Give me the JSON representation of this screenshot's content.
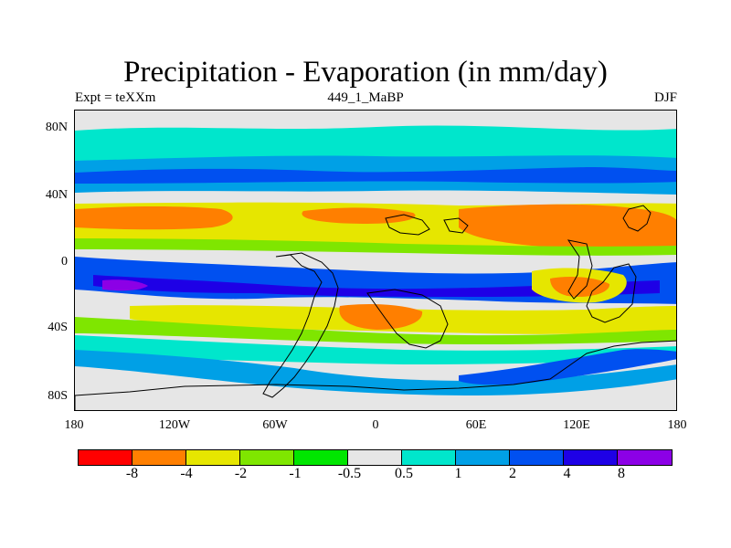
{
  "chart_data": {
    "type": "heatmap",
    "title": "Precipitation - Evaporation (in mm/day)",
    "subtitle_left": "Expt = teXXm",
    "subtitle_center": "449_1_MaBP",
    "subtitle_right": "DJF",
    "y_ticks": [
      "80N",
      "40N",
      "0",
      "40S",
      "80S"
    ],
    "x_ticks": [
      "180",
      "120W",
      "60W",
      "0",
      "60E",
      "120E",
      "180"
    ],
    "colorbar": {
      "colors": [
        "#ff0000",
        "#ff7f00",
        "#e6e600",
        "#7fe600",
        "#00e600",
        "#e6e6e6",
        "#00e6cc",
        "#00a0e6",
        "#0050f0",
        "#1e00e6",
        "#8c00e6"
      ],
      "labels": [
        "-8",
        "-4",
        "-2",
        "-1",
        "-0.5",
        "0.5",
        "1",
        "2",
        "4",
        "8"
      ]
    }
  }
}
